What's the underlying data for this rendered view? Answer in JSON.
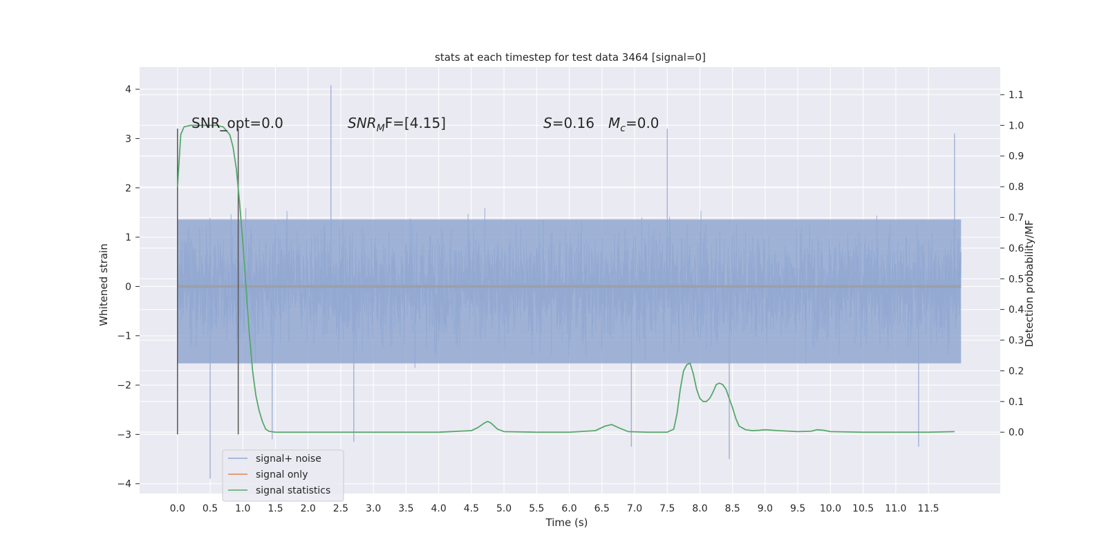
{
  "chart_data": {
    "type": "line",
    "title": "stats at each timestep for test data 3464 [signal=0]",
    "xlabel": "Time (s)",
    "ylabel_left": "Whitened strain",
    "ylabel_right": "Detection probability/MF",
    "xlim": [
      -0.58,
      12.6
    ],
    "ylim_left": [
      -4.2,
      4.45
    ],
    "ylim_right": [
      -0.2,
      1.19
    ],
    "x_ticks": [
      0.0,
      0.5,
      1.0,
      1.5,
      2.0,
      2.5,
      3.0,
      3.5,
      4.0,
      4.5,
      5.0,
      5.5,
      6.0,
      6.5,
      7.0,
      7.5,
      8.0,
      8.5,
      9.0,
      9.5,
      10.0,
      10.5,
      11.0,
      11.5
    ],
    "x_tick_labels": [
      "0.0",
      "0.5",
      "1.0",
      "1.5",
      "2.0",
      "2.5",
      "3.0",
      "3.5",
      "4.0",
      "4.5",
      "5.0",
      "5.5",
      "6.0",
      "6.5",
      "7.0",
      "7.5",
      "8.0",
      "8.5",
      "9.0",
      "9.5",
      "10.0",
      "10.5",
      "11.0",
      "11.5"
    ],
    "y_left_ticks": [
      -4,
      -3,
      -2,
      -1,
      0,
      1,
      2,
      3,
      4
    ],
    "y_left_tick_labels": [
      "−4",
      "−3",
      "−2",
      "−1",
      "0",
      "1",
      "2",
      "3",
      "4"
    ],
    "y_right_ticks": [
      0.0,
      0.1,
      0.2,
      0.3,
      0.4,
      0.5,
      0.6,
      0.7,
      0.8,
      0.9,
      1.0,
      1.1
    ],
    "y_right_tick_labels": [
      "0.0",
      "0.1",
      "0.2",
      "0.3",
      "0.4",
      "0.5",
      "0.6",
      "0.7",
      "0.8",
      "0.9",
      "1.0",
      "1.1"
    ],
    "grid": true,
    "legend_position": "lower-left",
    "series": [
      {
        "name": "signal+ noise",
        "color": "#92a8d1",
        "axis": "left",
        "kind": "noise",
        "x_range": [
          0.0,
          12.0
        ],
        "core_range": [
          -2.0,
          2.0
        ],
        "peaks": [
          [
            0.5,
            -3.9
          ],
          [
            2.35,
            4.08
          ],
          [
            7.5,
            3.2
          ],
          [
            6.95,
            -3.25
          ],
          [
            8.45,
            -3.5
          ],
          [
            11.35,
            -3.25
          ],
          [
            11.9,
            3.1
          ],
          [
            1.45,
            -3.1
          ],
          [
            2.7,
            -3.15
          ]
        ]
      },
      {
        "name": "signal only",
        "color": "#dd8452",
        "axis": "left",
        "x": [
          0.0,
          12.0
        ],
        "y": [
          0.0,
          0.0
        ]
      },
      {
        "name": "signal statistics",
        "color": "#55a868",
        "axis": "right",
        "x": [
          0.0,
          0.05,
          0.1,
          0.2,
          0.3,
          0.4,
          0.5,
          0.6,
          0.7,
          0.8,
          0.85,
          0.9,
          0.95,
          1.0,
          1.05,
          1.1,
          1.15,
          1.2,
          1.25,
          1.3,
          1.35,
          1.4,
          1.5,
          2.0,
          3.0,
          4.0,
          4.5,
          4.6,
          4.7,
          4.75,
          4.8,
          4.9,
          5.0,
          5.5,
          6.0,
          6.4,
          6.55,
          6.65,
          6.75,
          6.9,
          7.2,
          7.5,
          7.6,
          7.65,
          7.7,
          7.75,
          7.8,
          7.85,
          7.9,
          7.95,
          8.0,
          8.05,
          8.1,
          8.15,
          8.2,
          8.25,
          8.3,
          8.35,
          8.4,
          8.45,
          8.5,
          8.55,
          8.6,
          8.7,
          8.8,
          8.9,
          9.0,
          9.2,
          9.5,
          9.7,
          9.8,
          9.9,
          10.0,
          10.5,
          11.0,
          11.5,
          11.9
        ],
        "y": [
          0.8,
          0.97,
          0.995,
          1.0,
          1.0,
          1.0,
          1.0,
          1.0,
          0.995,
          0.97,
          0.93,
          0.86,
          0.75,
          0.62,
          0.47,
          0.32,
          0.2,
          0.12,
          0.07,
          0.035,
          0.01,
          0.003,
          0.0,
          0.0,
          0.0,
          0.0,
          0.005,
          0.015,
          0.03,
          0.035,
          0.03,
          0.01,
          0.002,
          0.0,
          0.0,
          0.005,
          0.02,
          0.025,
          0.015,
          0.002,
          0.0,
          0.0,
          0.01,
          0.06,
          0.14,
          0.2,
          0.22,
          0.225,
          0.19,
          0.14,
          0.11,
          0.1,
          0.1,
          0.11,
          0.13,
          0.155,
          0.16,
          0.155,
          0.14,
          0.11,
          0.08,
          0.045,
          0.02,
          0.008,
          0.005,
          0.006,
          0.008,
          0.005,
          0.002,
          0.003,
          0.008,
          0.006,
          0.002,
          0.0,
          0.0,
          0.0,
          0.002
        ]
      }
    ],
    "vlines": [
      {
        "x": 0.0,
        "ymin": -3.0,
        "ymax": 3.2,
        "color": "#555555"
      },
      {
        "x": 0.93,
        "ymin": -3.0,
        "ymax": 3.2,
        "color": "#555555"
      }
    ],
    "annotations": {
      "snr_opt": "SNR_opt=0.0",
      "snr_mf_base": "SNR",
      "snr_mf_sub": "M",
      "snr_mf_tail": "F=[4.15]",
      "s_label": "S",
      "s_value": "=0.16",
      "mc_base": "M",
      "mc_sub": "c",
      "mc_value": "=0.0"
    }
  }
}
